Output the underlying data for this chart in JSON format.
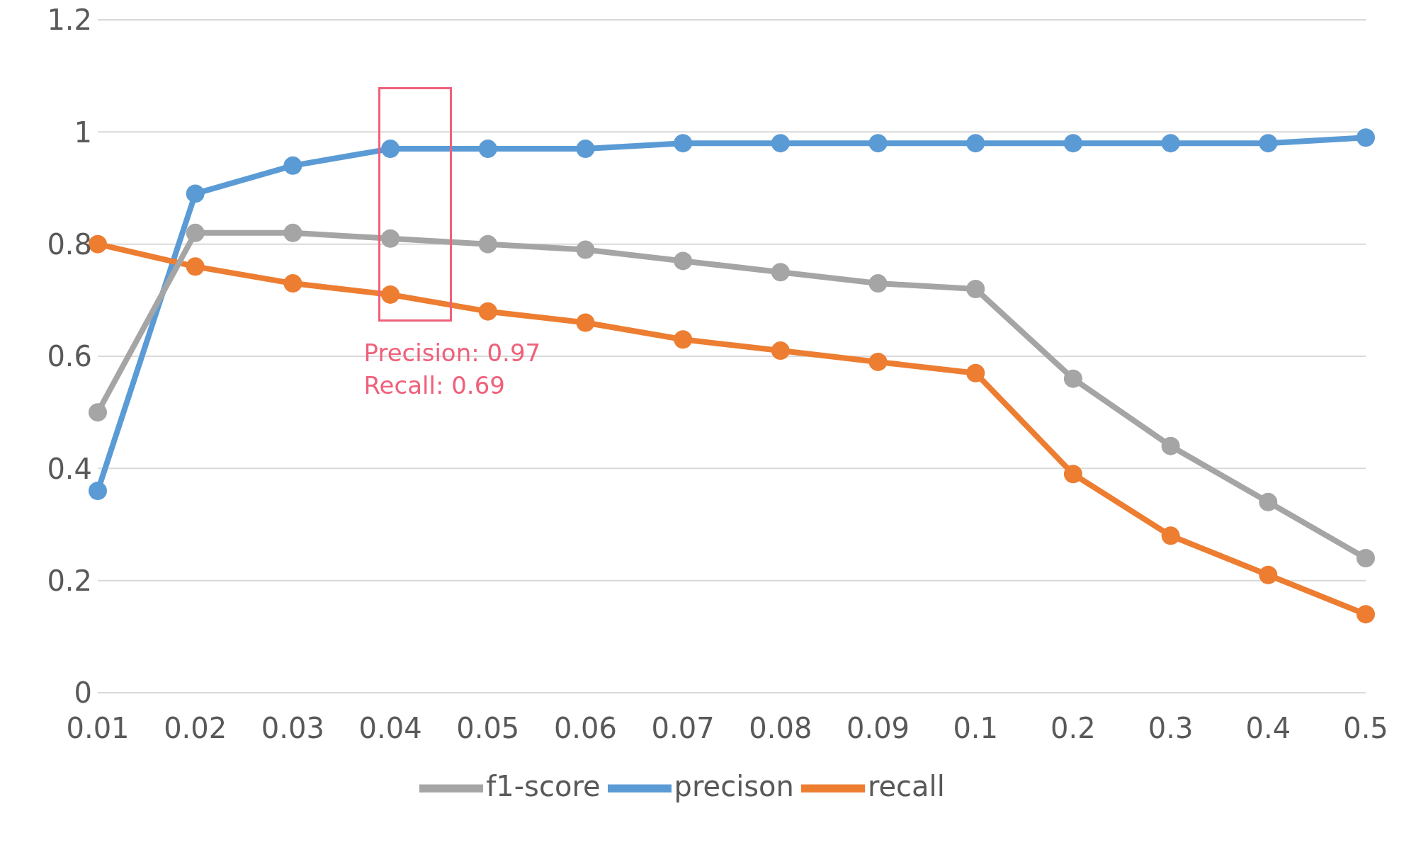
{
  "chart_data": {
    "type": "line",
    "categories": [
      "0.01",
      "0.02",
      "0.03",
      "0.04",
      "0.05",
      "0.06",
      "0.07",
      "0.08",
      "0.09",
      "0.1",
      "0.2",
      "0.3",
      "0.4",
      "0.5"
    ],
    "series": [
      {
        "name": "precison",
        "color": "#5b9bd5",
        "values": [
          0.36,
          0.89,
          0.94,
          0.97,
          0.97,
          0.97,
          0.98,
          0.98,
          0.98,
          0.98,
          0.98,
          0.98,
          0.98,
          0.99
        ]
      },
      {
        "name": "recall",
        "color": "#ed7d31",
        "values": [
          0.8,
          0.76,
          0.73,
          0.71,
          0.68,
          0.66,
          0.63,
          0.61,
          0.59,
          0.57,
          0.39,
          0.28,
          0.21,
          0.14
        ]
      },
      {
        "name": "f1-score",
        "color": "#a5a5a5",
        "values": [
          0.5,
          0.82,
          0.82,
          0.81,
          0.8,
          0.79,
          0.77,
          0.75,
          0.73,
          0.72,
          0.56,
          0.44,
          0.34,
          0.24
        ]
      }
    ],
    "ylim": [
      0,
      1.2
    ],
    "yticks": [
      0,
      0.2,
      0.4,
      0.6,
      0.8,
      1,
      1.2
    ],
    "grid": "y",
    "legend": "bottom",
    "marker": "circle",
    "line_style": "solid",
    "annotations": [
      "Precision: 0.97",
      "Recall: 0.69"
    ]
  }
}
